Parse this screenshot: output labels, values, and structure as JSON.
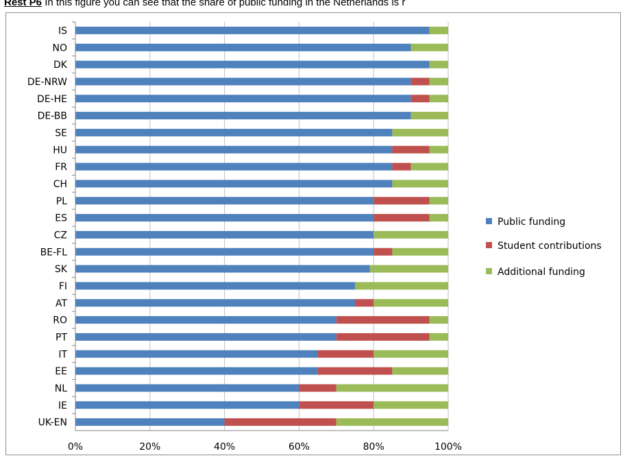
{
  "caption": {
    "bold": "Rest P6",
    "text": " In this figure  you can see that the share of public funding in the Netherlands is r"
  },
  "colors": {
    "public": "#4f81bd",
    "student": "#c0504d",
    "additional": "#9bbb59",
    "grid": "#bfbfbf",
    "axis": "#868686",
    "frame": "#8c8c8c"
  },
  "chart_data": {
    "type": "bar",
    "orientation": "horizontal",
    "stacked": "percent",
    "title": "",
    "xlabel": "",
    "ylabel": "",
    "xlim": [
      0,
      100
    ],
    "x_ticks": [
      "0%",
      "20%",
      "40%",
      "60%",
      "80%",
      "100%"
    ],
    "grid": true,
    "legend_position": "right",
    "categories": [
      "IS",
      "NO",
      "DK",
      "DE-NRW",
      "DE-HE",
      "DE-BB",
      "SE",
      "HU",
      "FR",
      "CH",
      "PL",
      "ES",
      "CZ",
      "BE-FL",
      "SK",
      "FI",
      "AT",
      "RO",
      "PT",
      "IT",
      "EE",
      "NL",
      "IE",
      "UK-EN"
    ],
    "series": [
      {
        "name": "Public funding",
        "values": [
          95,
          90,
          95,
          90,
          90,
          90,
          85,
          85,
          85,
          85,
          80,
          80,
          80,
          80,
          79,
          75,
          75,
          70,
          70,
          65,
          65,
          60,
          60,
          40
        ]
      },
      {
        "name": "Student contributions",
        "values": [
          0,
          0,
          0,
          5,
          5,
          0,
          0,
          10,
          5,
          0,
          15,
          15,
          0,
          5,
          0,
          0,
          5,
          25,
          25,
          15,
          20,
          10,
          20,
          30
        ]
      },
      {
        "name": "Additional funding",
        "values": [
          5,
          10,
          5,
          5,
          5,
          10,
          15,
          5,
          10,
          15,
          5,
          5,
          20,
          15,
          21,
          25,
          20,
          5,
          5,
          20,
          15,
          30,
          20,
          30
        ]
      }
    ]
  }
}
